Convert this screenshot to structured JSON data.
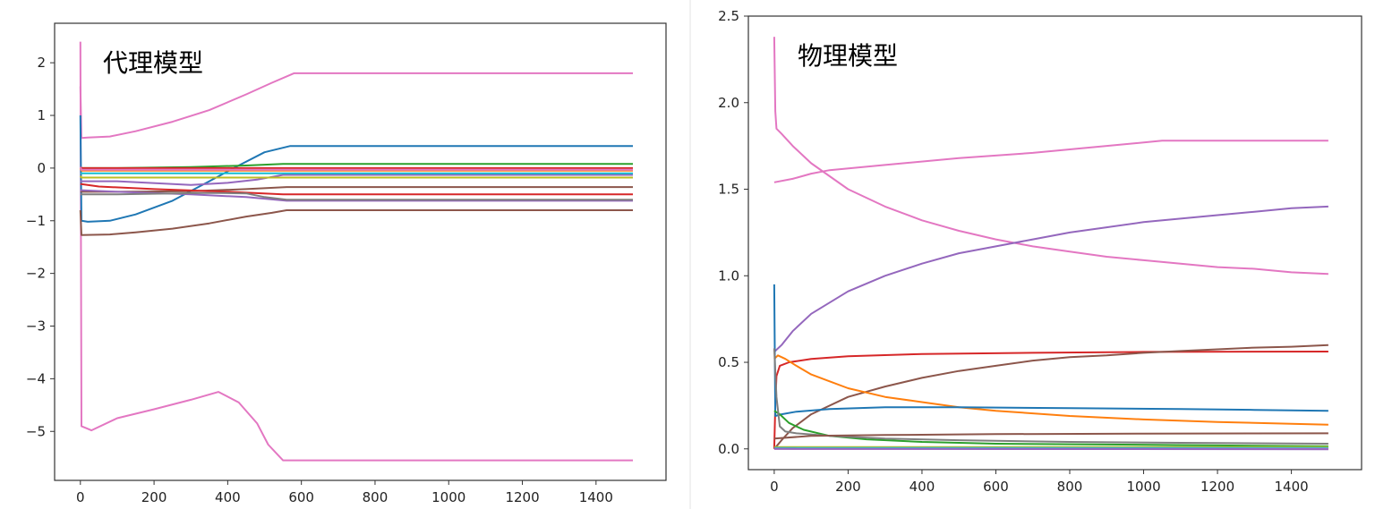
{
  "charts": [
    {
      "id": "surrogate",
      "title": "代理模型",
      "type": "line",
      "xlim": [
        -70,
        1590
      ],
      "ylim": [
        -5.93,
        2.75
      ],
      "xticks": [
        0,
        200,
        400,
        600,
        800,
        1000,
        1200,
        1400
      ],
      "yticks": [
        -5,
        -4,
        -3,
        -2,
        -1,
        0,
        1,
        2
      ],
      "grid": false,
      "series": [
        {
          "color": "#e377c2",
          "points": [
            [
              0,
              2.4
            ],
            [
              3,
              -4.9
            ],
            [
              20,
              -4.95
            ],
            [
              30,
              -4.98
            ],
            [
              100,
              -4.75
            ],
            [
              200,
              -4.58
            ],
            [
              300,
              -4.4
            ],
            [
              375,
              -4.25
            ],
            [
              430,
              -4.45
            ],
            [
              480,
              -4.85
            ],
            [
              510,
              -5.25
            ],
            [
              550,
              -5.55
            ],
            [
              1500,
              -5.55
            ]
          ]
        },
        {
          "color": "#e377c2",
          "points": [
            [
              0,
              1.55
            ],
            [
              3,
              0.57
            ],
            [
              20,
              0.58
            ],
            [
              80,
              0.6
            ],
            [
              150,
              0.7
            ],
            [
              250,
              0.88
            ],
            [
              350,
              1.1
            ],
            [
              450,
              1.4
            ],
            [
              520,
              1.62
            ],
            [
              580,
              1.8
            ],
            [
              1500,
              1.8
            ]
          ]
        },
        {
          "color": "#1f77b4",
          "points": [
            [
              0,
              1.0
            ],
            [
              3,
              -1.0
            ],
            [
              20,
              -1.02
            ],
            [
              80,
              -1.0
            ],
            [
              150,
              -0.88
            ],
            [
              250,
              -0.62
            ],
            [
              350,
              -0.25
            ],
            [
              430,
              0.05
            ],
            [
              500,
              0.3
            ],
            [
              570,
              0.42
            ],
            [
              1500,
              0.42
            ]
          ]
        },
        {
          "color": "#8c564b",
          "points": [
            [
              0,
              -0.8
            ],
            [
              3,
              -1.27
            ],
            [
              80,
              -1.26
            ],
            [
              150,
              -1.22
            ],
            [
              250,
              -1.15
            ],
            [
              350,
              -1.05
            ],
            [
              450,
              -0.92
            ],
            [
              520,
              -0.85
            ],
            [
              560,
              -0.8
            ],
            [
              1500,
              -0.8
            ]
          ]
        },
        {
          "color": "#2ca02c",
          "points": [
            [
              0,
              0.0
            ],
            [
              100,
              0.0
            ],
            [
              300,
              0.02
            ],
            [
              450,
              0.05
            ],
            [
              550,
              0.08
            ],
            [
              1500,
              0.08
            ]
          ]
        },
        {
          "color": "#d62728",
          "points": [
            [
              0,
              0.02
            ],
            [
              3,
              0.0
            ],
            [
              1500,
              0.0
            ]
          ]
        },
        {
          "color": "#ff7f0e",
          "points": [
            [
              0,
              0.0
            ],
            [
              3,
              -0.05
            ],
            [
              1500,
              -0.05
            ]
          ]
        },
        {
          "color": "#9467bd",
          "points": [
            [
              0,
              -0.25
            ],
            [
              100,
              -0.25
            ],
            [
              300,
              -0.32
            ],
            [
              400,
              -0.28
            ],
            [
              480,
              -0.22
            ],
            [
              550,
              -0.13
            ],
            [
              1500,
              -0.13
            ]
          ]
        },
        {
          "color": "#bcbd22",
          "points": [
            [
              0,
              -0.15
            ],
            [
              3,
              -0.18
            ],
            [
              1500,
              -0.18
            ]
          ]
        },
        {
          "color": "#17becf",
          "points": [
            [
              0,
              -0.1
            ],
            [
              3,
              -0.1
            ],
            [
              1500,
              -0.1
            ]
          ]
        },
        {
          "color": "#8c564b",
          "points": [
            [
              0,
              -0.45
            ],
            [
              100,
              -0.45
            ],
            [
              300,
              -0.44
            ],
            [
              450,
              -0.4
            ],
            [
              560,
              -0.36
            ],
            [
              1500,
              -0.36
            ]
          ]
        },
        {
          "color": "#d62728",
          "points": [
            [
              0,
              -0.3
            ],
            [
              50,
              -0.35
            ],
            [
              200,
              -0.4
            ],
            [
              400,
              -0.45
            ],
            [
              550,
              -0.5
            ],
            [
              1500,
              -0.5
            ]
          ]
        },
        {
          "color": "#9467bd",
          "points": [
            [
              0,
              -0.42
            ],
            [
              100,
              -0.45
            ],
            [
              300,
              -0.5
            ],
            [
              450,
              -0.55
            ],
            [
              560,
              -0.62
            ],
            [
              1500,
              -0.62
            ]
          ]
        },
        {
          "color": "#7f7f7f",
          "points": [
            [
              0,
              -0.5
            ],
            [
              100,
              -0.5
            ],
            [
              250,
              -0.48
            ],
            [
              350,
              -0.47
            ],
            [
              450,
              -0.48
            ],
            [
              500,
              -0.55
            ],
            [
              560,
              -0.6
            ],
            [
              1500,
              -0.6
            ]
          ]
        },
        {
          "color": "#e377c2",
          "points": [
            [
              0,
              0.02
            ],
            [
              3,
              -0.03
            ],
            [
              1500,
              -0.03
            ]
          ]
        }
      ]
    },
    {
      "id": "physical",
      "title": "物理模型",
      "type": "line",
      "xlim": [
        -70,
        1590
      ],
      "ylim": [
        -0.12,
        2.5
      ],
      "xticks": [
        0,
        200,
        400,
        600,
        800,
        1000,
        1200,
        1400
      ],
      "yticks": [
        0.0,
        0.5,
        1.0,
        1.5,
        2.0,
        2.5
      ],
      "ytick_labels": [
        "0.0",
        "0.5",
        "1.0",
        "1.5",
        "2.0",
        "2.5"
      ],
      "grid": false,
      "series": [
        {
          "color": "#e377c2",
          "points": [
            [
              0,
              2.38
            ],
            [
              3,
              1.95
            ],
            [
              6,
              1.85
            ],
            [
              20,
              1.82
            ],
            [
              50,
              1.75
            ],
            [
              100,
              1.65
            ],
            [
              200,
              1.5
            ],
            [
              300,
              1.4
            ],
            [
              400,
              1.32
            ],
            [
              500,
              1.26
            ],
            [
              600,
              1.21
            ],
            [
              700,
              1.17
            ],
            [
              800,
              1.14
            ],
            [
              900,
              1.11
            ],
            [
              1000,
              1.09
            ],
            [
              1100,
              1.07
            ],
            [
              1200,
              1.05
            ],
            [
              1300,
              1.04
            ],
            [
              1400,
              1.02
            ],
            [
              1500,
              1.01
            ]
          ]
        },
        {
          "color": "#e377c2",
          "points": [
            [
              0,
              1.54
            ],
            [
              50,
              1.56
            ],
            [
              100,
              1.59
            ],
            [
              150,
              1.61
            ],
            [
              300,
              1.64
            ],
            [
              500,
              1.68
            ],
            [
              700,
              1.71
            ],
            [
              900,
              1.75
            ],
            [
              1050,
              1.78
            ],
            [
              1500,
              1.78
            ]
          ]
        },
        {
          "color": "#9467bd",
          "points": [
            [
              0,
              0.56
            ],
            [
              20,
              0.6
            ],
            [
              50,
              0.68
            ],
            [
              100,
              0.78
            ],
            [
              200,
              0.91
            ],
            [
              300,
              1.0
            ],
            [
              400,
              1.07
            ],
            [
              500,
              1.13
            ],
            [
              600,
              1.17
            ],
            [
              700,
              1.21
            ],
            [
              800,
              1.25
            ],
            [
              900,
              1.28
            ],
            [
              1000,
              1.31
            ],
            [
              1100,
              1.33
            ],
            [
              1200,
              1.35
            ],
            [
              1300,
              1.37
            ],
            [
              1400,
              1.39
            ],
            [
              1500,
              1.4
            ]
          ]
        },
        {
          "color": "#d62728",
          "points": [
            [
              0,
              0.0
            ],
            [
              3,
              0.25
            ],
            [
              6,
              0.42
            ],
            [
              15,
              0.48
            ],
            [
              40,
              0.5
            ],
            [
              100,
              0.52
            ],
            [
              200,
              0.535
            ],
            [
              400,
              0.548
            ],
            [
              700,
              0.555
            ],
            [
              1000,
              0.56
            ],
            [
              1500,
              0.562
            ]
          ]
        },
        {
          "color": "#8c564b",
          "points": [
            [
              0,
              0.0
            ],
            [
              20,
              0.05
            ],
            [
              50,
              0.12
            ],
            [
              100,
              0.2
            ],
            [
              200,
              0.3
            ],
            [
              300,
              0.36
            ],
            [
              400,
              0.41
            ],
            [
              500,
              0.45
            ],
            [
              600,
              0.48
            ],
            [
              700,
              0.51
            ],
            [
              800,
              0.53
            ],
            [
              900,
              0.54
            ],
            [
              1000,
              0.555
            ],
            [
              1100,
              0.565
            ],
            [
              1200,
              0.575
            ],
            [
              1300,
              0.585
            ],
            [
              1400,
              0.59
            ],
            [
              1500,
              0.6
            ]
          ]
        },
        {
          "color": "#ff7f0e",
          "points": [
            [
              0,
              0.52
            ],
            [
              10,
              0.54
            ],
            [
              30,
              0.52
            ],
            [
              60,
              0.48
            ],
            [
              100,
              0.43
            ],
            [
              150,
              0.39
            ],
            [
              200,
              0.35
            ],
            [
              300,
              0.3
            ],
            [
              400,
              0.27
            ],
            [
              500,
              0.24
            ],
            [
              600,
              0.22
            ],
            [
              800,
              0.19
            ],
            [
              1000,
              0.17
            ],
            [
              1200,
              0.155
            ],
            [
              1400,
              0.145
            ],
            [
              1500,
              0.14
            ]
          ]
        },
        {
          "color": "#1f77b4",
          "points": [
            [
              0,
              0.95
            ],
            [
              3,
              0.19
            ],
            [
              20,
              0.2
            ],
            [
              60,
              0.215
            ],
            [
              150,
              0.23
            ],
            [
              300,
              0.24
            ],
            [
              500,
              0.24
            ],
            [
              800,
              0.235
            ],
            [
              1100,
              0.23
            ],
            [
              1300,
              0.225
            ],
            [
              1500,
              0.22
            ]
          ]
        },
        {
          "color": "#2ca02c",
          "points": [
            [
              0,
              0.22
            ],
            [
              15,
              0.2
            ],
            [
              40,
              0.15
            ],
            [
              80,
              0.11
            ],
            [
              150,
              0.075
            ],
            [
              250,
              0.055
            ],
            [
              400,
              0.04
            ],
            [
              600,
              0.03
            ],
            [
              900,
              0.025
            ],
            [
              1200,
              0.02
            ],
            [
              1500,
              0.015
            ]
          ]
        },
        {
          "color": "#7f7f7f",
          "points": [
            [
              0,
              0.58
            ],
            [
              6,
              0.3
            ],
            [
              15,
              0.13
            ],
            [
              30,
              0.1
            ],
            [
              60,
              0.09
            ],
            [
              150,
              0.075
            ],
            [
              300,
              0.06
            ],
            [
              500,
              0.05
            ],
            [
              800,
              0.04
            ],
            [
              1100,
              0.035
            ],
            [
              1500,
              0.03
            ]
          ]
        },
        {
          "color": "#8c564b",
          "points": [
            [
              0,
              0.06
            ],
            [
              100,
              0.075
            ],
            [
              300,
              0.08
            ],
            [
              600,
              0.085
            ],
            [
              1000,
              0.088
            ],
            [
              1500,
              0.09
            ]
          ]
        },
        {
          "color": "#bcbd22",
          "points": [
            [
              0,
              0.01
            ],
            [
              1500,
              0.01
            ]
          ]
        },
        {
          "color": "#17becf",
          "points": [
            [
              0,
              0.005
            ],
            [
              1500,
              0.005
            ]
          ]
        },
        {
          "color": "#e377c2",
          "points": [
            [
              0,
              0.0
            ],
            [
              1500,
              0.0
            ]
          ]
        },
        {
          "color": "#9467bd",
          "points": [
            [
              0,
              0.0
            ],
            [
              1500,
              -0.002
            ]
          ]
        }
      ]
    }
  ]
}
